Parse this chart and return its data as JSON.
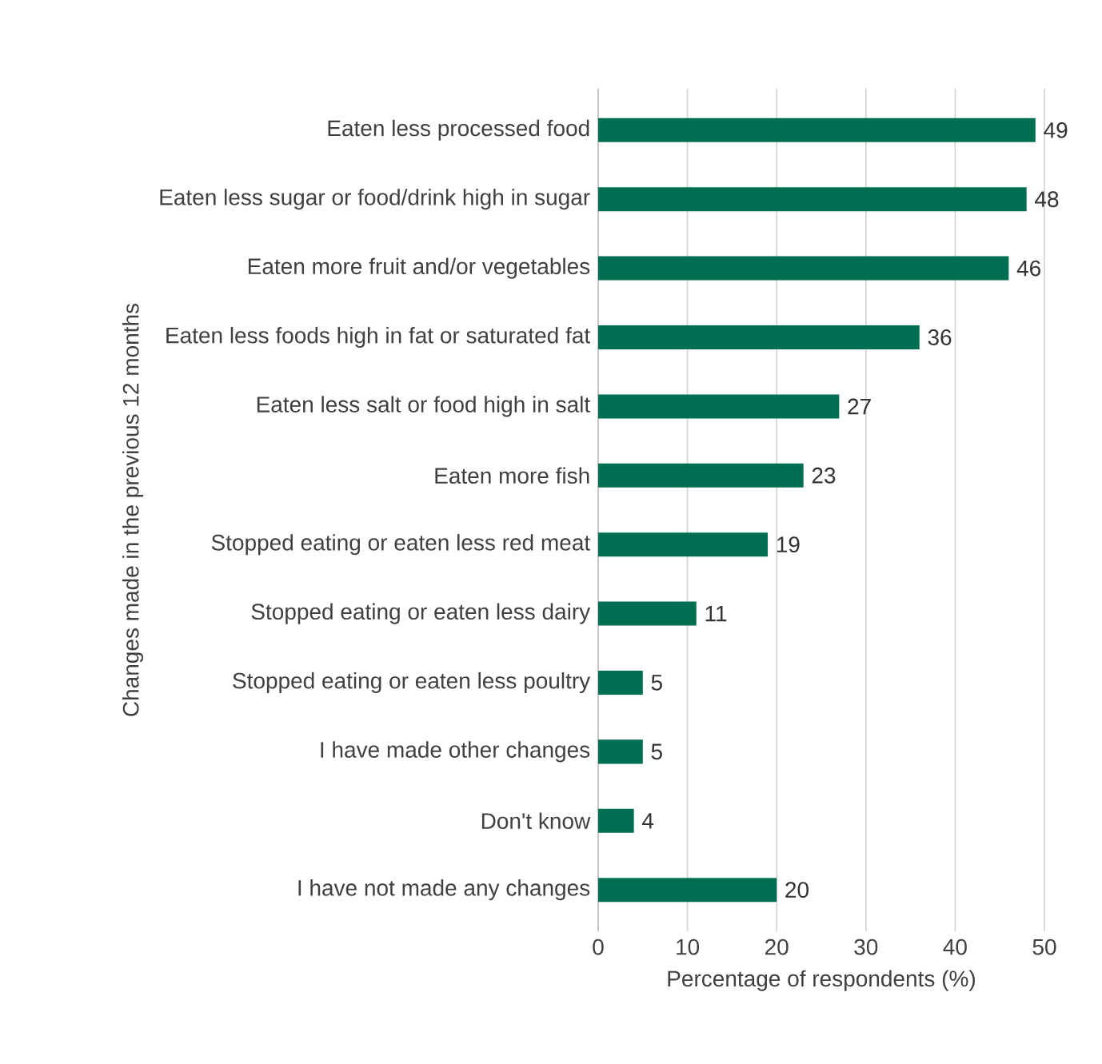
{
  "chart_data": {
    "type": "bar",
    "orientation": "horizontal",
    "categories": [
      "Eaten less processed food",
      "Eaten less sugar or food/drink high in sugar",
      "Eaten more fruit and/or vegetables",
      "Eaten less foods high in fat or saturated fat",
      "Eaten less salt or food high in salt",
      "Eaten more fish",
      "Stopped eating or eaten less red meat",
      "Stopped eating or eaten less dairy",
      "Stopped eating or eaten less poultry",
      "I have made other changes",
      "Don't know",
      "I have not made any changes"
    ],
    "values": [
      49,
      48,
      46,
      36,
      27,
      23,
      19,
      11,
      5,
      5,
      4,
      20
    ],
    "color": "#006e51",
    "xlim": [
      0,
      50
    ],
    "xticks": [
      0,
      10,
      20,
      30,
      40,
      50
    ],
    "xlabel": "Percentage of respondents (%)",
    "ylabel": "Changes made in the previous 12 months",
    "grid": "x",
    "data_labels": true
  }
}
